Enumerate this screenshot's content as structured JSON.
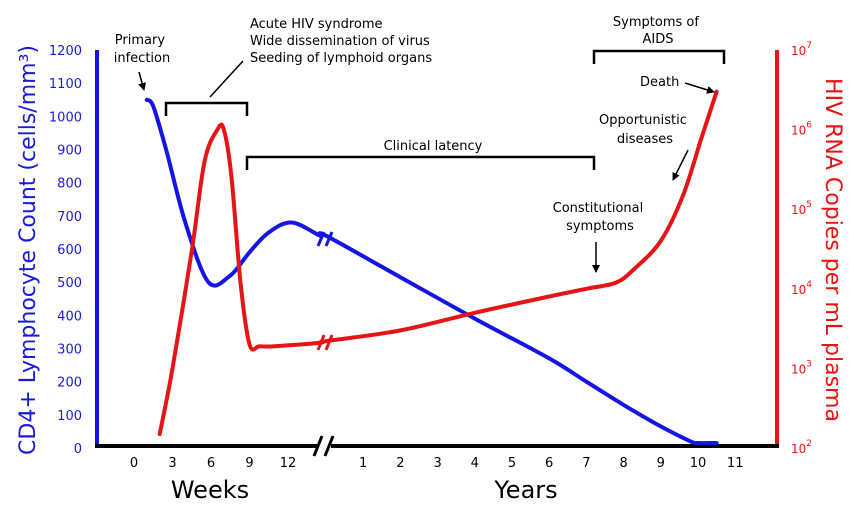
{
  "chart_data": {
    "type": "line",
    "x_axis": {
      "weeks_label": "Weeks",
      "years_label": "Years",
      "weeks_ticks": [
        "0",
        "3",
        "6",
        "9",
        "12"
      ],
      "years_ticks": [
        "1",
        "2",
        "3",
        "4",
        "5",
        "6",
        "7",
        "8",
        "9",
        "10",
        "11"
      ]
    },
    "y_left": {
      "label": "CD4+ Lymphocyte Count (cells/mm³)",
      "ylim": [
        0,
        1200
      ],
      "ticks": [
        "0",
        "100",
        "200",
        "300",
        "400",
        "500",
        "600",
        "700",
        "800",
        "900",
        "1000",
        "1100",
        "1200"
      ]
    },
    "y_right": {
      "label": "HIV RNA Copies per mL plasma",
      "scale": "log",
      "ylim": [
        100,
        10000000
      ],
      "ticks": [
        {
          "base": "10",
          "exp": "2"
        },
        {
          "base": "10",
          "exp": "3"
        },
        {
          "base": "10",
          "exp": "4"
        },
        {
          "base": "10",
          "exp": "5"
        },
        {
          "base": "10",
          "exp": "6"
        },
        {
          "base": "10",
          "exp": "7"
        }
      ]
    },
    "series": [
      {
        "color": "#1414e6",
        "segments": [
          {
            "x_unit": "weeks",
            "points": [
              [
                1,
                1050
              ],
              [
                1.5,
                1030
              ],
              [
                2.5,
                900
              ],
              [
                4,
                680
              ],
              [
                5.8,
                500
              ],
              [
                7.5,
                520
              ],
              [
                9,
                590
              ],
              [
                10.5,
                650
              ],
              [
                12.3,
                680
              ],
              [
                14.5,
                640
              ]
            ]
          },
          {
            "x_unit": "years",
            "points": [
              [
                0,
                640
              ],
              [
                2,
                515
              ],
              [
                4,
                390
              ],
              [
                6,
                270
              ],
              [
                7,
                200
              ],
              [
                8,
                130
              ],
              [
                9,
                65
              ],
              [
                9.8,
                20
              ],
              [
                10,
                15
              ],
              [
                10.5,
                15
              ]
            ]
          }
        ]
      },
      {
        "color": "#e61414",
        "segments": [
          {
            "x_unit": "weeks",
            "points": [
              [
                2,
                150
              ],
              [
                3,
                1000
              ],
              [
                4.5,
                30000
              ],
              [
                5.5,
                400000
              ],
              [
                6.5,
                1000000
              ],
              [
                7,
                1000000
              ],
              [
                7.6,
                250000
              ],
              [
                8.3,
                12000
              ],
              [
                9,
                2000
              ],
              [
                9.8,
                1900
              ],
              [
                11,
                1900
              ],
              [
                14.5,
                2100
              ]
            ]
          },
          {
            "x_unit": "years",
            "points": [
              [
                0,
                2200
              ],
              [
                2,
                3000
              ],
              [
                4,
                5000
              ],
              [
                6,
                8000
              ],
              [
                7,
                10000
              ],
              [
                7.8,
                12000
              ],
              [
                8.3,
                18000
              ],
              [
                9,
                40000
              ],
              [
                9.6,
                150000
              ],
              [
                10.1,
                800000
              ],
              [
                10.5,
                3000000
              ]
            ]
          }
        ]
      }
    ],
    "annotations": {
      "primary_infection": [
        "Primary",
        "infection"
      ],
      "acute": [
        "Acute HIV syndrome",
        "Wide dissemination of virus",
        "Seeding of lymphoid organs"
      ],
      "clinical_latency": "Clinical latency",
      "symptoms_of_aids": [
        "Symptoms of",
        "AIDS"
      ],
      "death": "Death",
      "opportunistic": [
        "Opportunistic",
        "diseases"
      ],
      "constitutional": [
        "Constitutional",
        "symptoms"
      ]
    },
    "grid": false,
    "legend": "none"
  }
}
